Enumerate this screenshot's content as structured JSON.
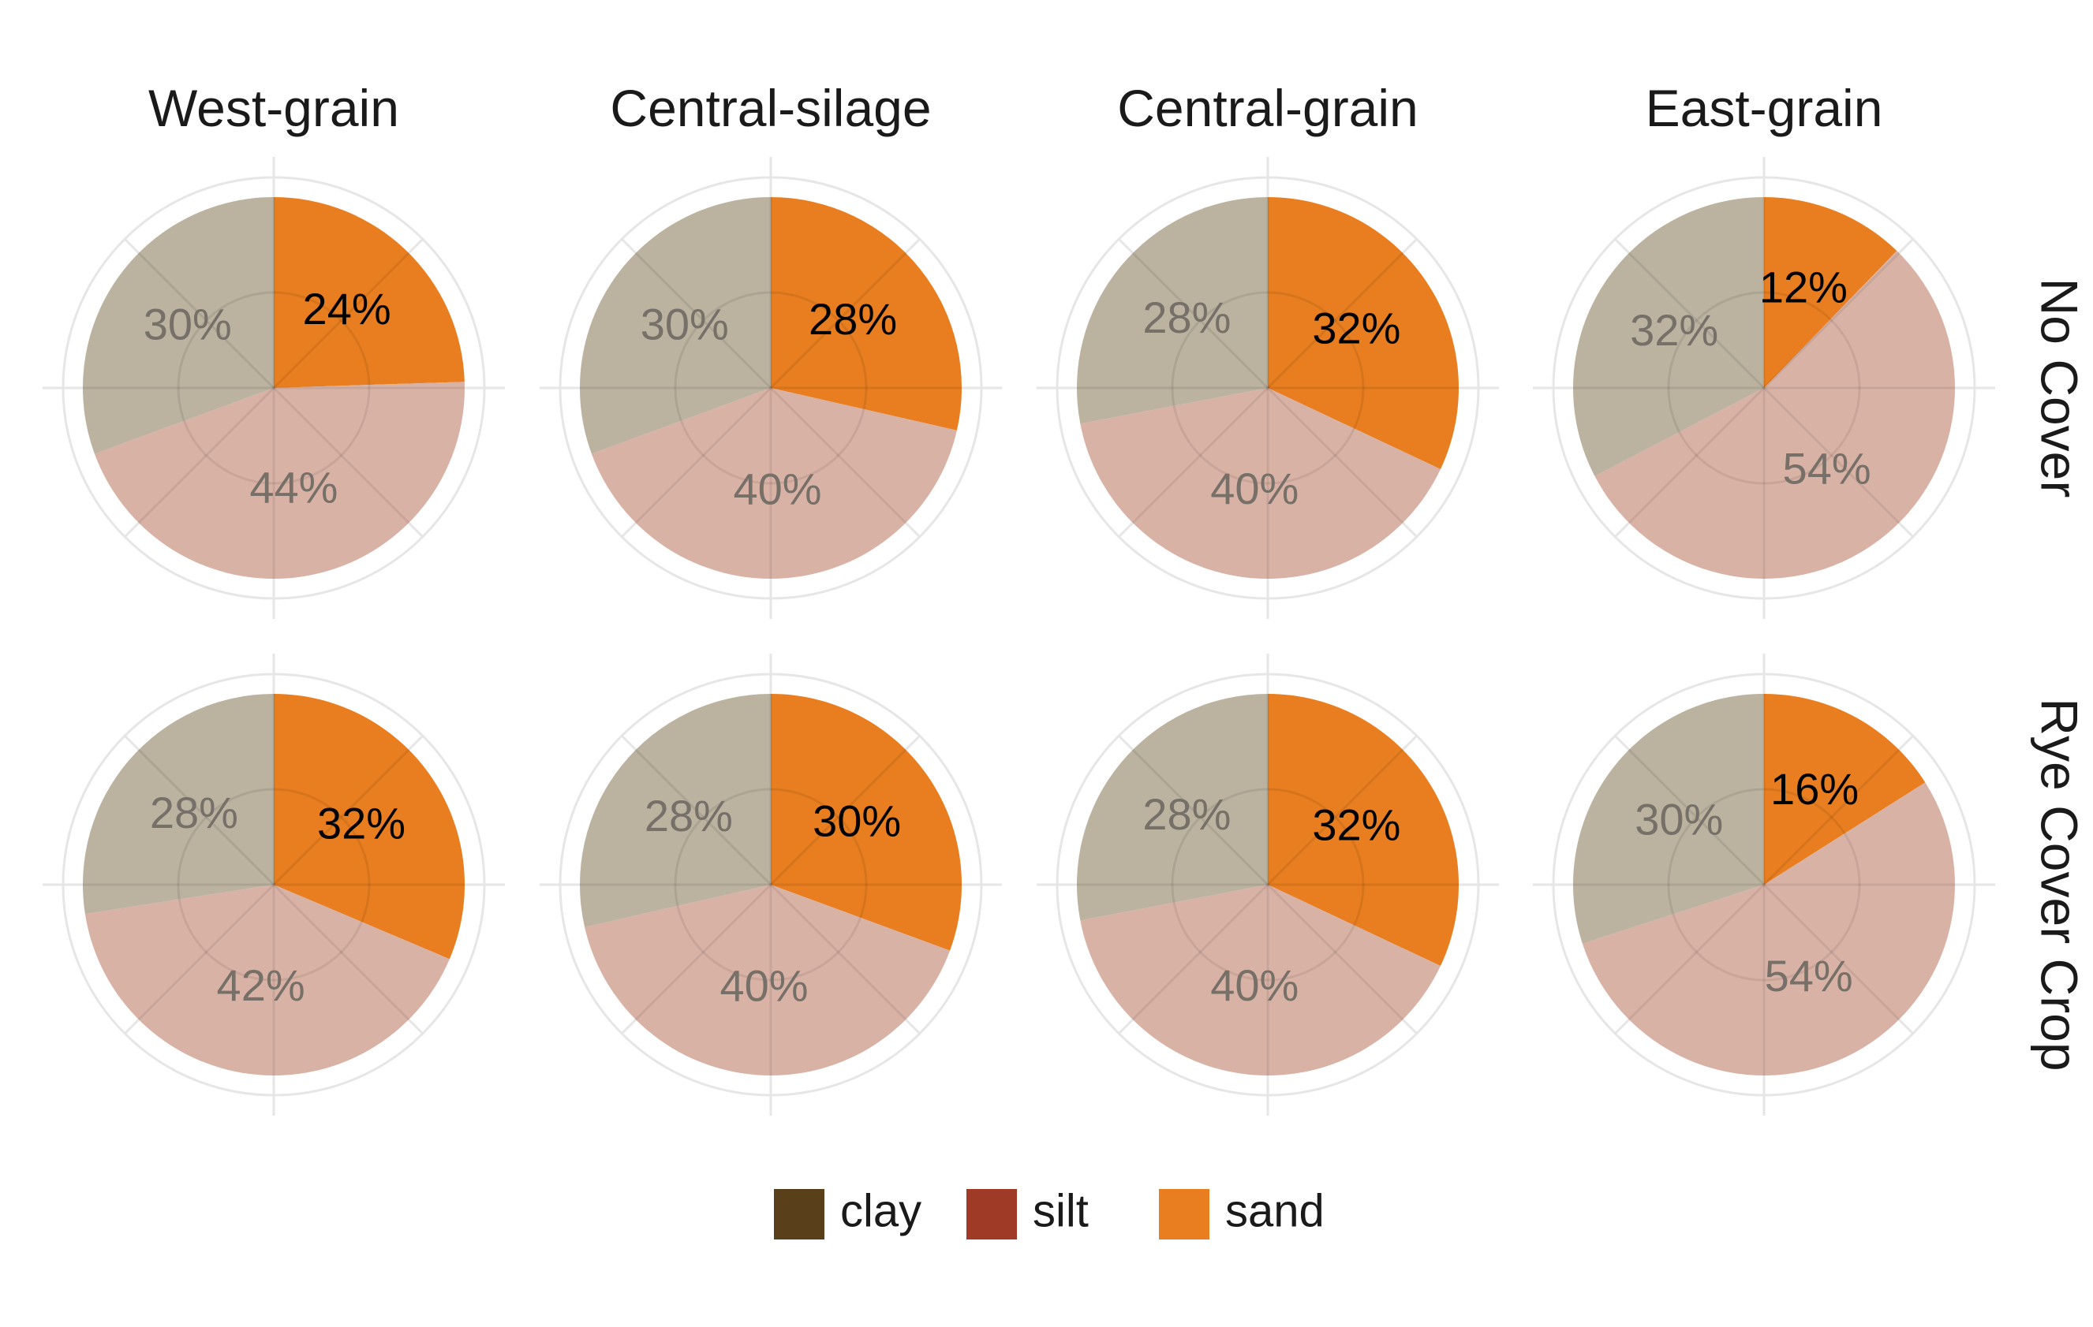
{
  "chart_data": {
    "type": "pie",
    "columns": [
      "West-grain",
      "Central-silage",
      "Central-grain",
      "East-grain"
    ],
    "rows": [
      "No Cover",
      "Rye Cover Crop"
    ],
    "categories": [
      "clay",
      "silt",
      "sand"
    ],
    "legend": {
      "position": "bottom",
      "items": [
        {
          "label": "clay",
          "color": "#5a3f1b"
        },
        {
          "label": "silt",
          "color": "#9e3a26"
        },
        {
          "label": "sand",
          "color": "#e87e1f"
        }
      ]
    },
    "colors": {
      "clay_slice": "#bbb2a0",
      "silt_slice": "#d9b2a6",
      "sand_slice": "#e87e1f",
      "faded_label": "#767069",
      "sand_label": "#000000"
    },
    "highlight": "sand",
    "panels": [
      {
        "row": "No Cover",
        "column": "West-grain",
        "sand": 24,
        "silt": 44,
        "clay": 30,
        "labels": {
          "sand": "24%",
          "silt": "44%",
          "clay": "30%"
        }
      },
      {
        "row": "No Cover",
        "column": "Central-silage",
        "sand": 28,
        "silt": 40,
        "clay": 30,
        "labels": {
          "sand": "28%",
          "silt": "40%",
          "clay": "30%"
        }
      },
      {
        "row": "No Cover",
        "column": "Central-grain",
        "sand": 32,
        "silt": 40,
        "clay": 28,
        "labels": {
          "sand": "32%",
          "silt": "40%",
          "clay": "28%"
        }
      },
      {
        "row": "No Cover",
        "column": "East-grain",
        "sand": 12,
        "silt": 54,
        "clay": 32,
        "labels": {
          "sand": "12%",
          "silt": "54%",
          "clay": "32%"
        }
      },
      {
        "row": "Rye Cover Crop",
        "column": "West-grain",
        "sand": 32,
        "silt": 42,
        "clay": 28,
        "labels": {
          "sand": "32%",
          "silt": "42%",
          "clay": "28%"
        }
      },
      {
        "row": "Rye Cover Crop",
        "column": "Central-silage",
        "sand": 30,
        "silt": 40,
        "clay": 28,
        "labels": {
          "sand": "30%",
          "silt": "40%",
          "clay": "28%"
        }
      },
      {
        "row": "Rye Cover Crop",
        "column": "Central-grain",
        "sand": 32,
        "silt": 40,
        "clay": 28,
        "labels": {
          "sand": "32%",
          "silt": "40%",
          "clay": "28%"
        }
      },
      {
        "row": "Rye Cover Crop",
        "column": "East-grain",
        "sand": 16,
        "silt": 54,
        "clay": 30,
        "labels": {
          "sand": "16%",
          "silt": "54%",
          "clay": "30%"
        }
      }
    ]
  }
}
